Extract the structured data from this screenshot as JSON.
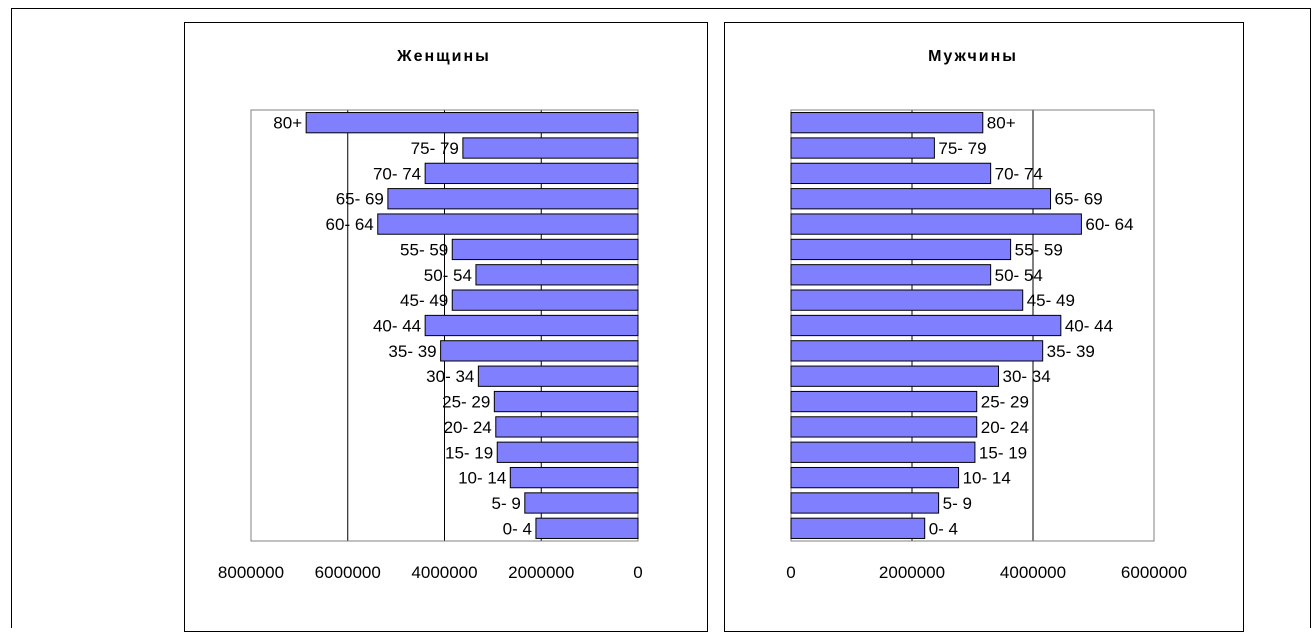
{
  "chart_data": [
    {
      "type": "bar",
      "orientation": "horizontal",
      "x_direction": "reversed",
      "title": "Женщины",
      "categories": [
        "80+",
        "75- 79",
        "70- 74",
        "65- 69",
        "60- 64",
        "55- 59",
        "50- 54",
        "45- 49",
        "40- 44",
        "35- 39",
        "30- 34",
        "25- 29",
        "20- 24",
        "15- 19",
        "10- 14",
        "5-  9",
        "0-  4"
      ],
      "values": [
        6860000,
        3620000,
        4400000,
        5170000,
        5380000,
        3840000,
        3350000,
        3840000,
        4400000,
        4080000,
        3300000,
        2970000,
        2940000,
        2910000,
        2640000,
        2340000,
        2110000
      ],
      "xlim": [
        0,
        8000000
      ],
      "ticks": [
        0,
        2000000,
        4000000,
        6000000,
        8000000
      ],
      "tick_labels": [
        "0",
        "2000000",
        "4000000",
        "6000000",
        "8000000"
      ],
      "bar_color": "#8080ff",
      "grid": true,
      "legend": "none"
    },
    {
      "type": "bar",
      "orientation": "horizontal",
      "x_direction": "normal",
      "title": "Мужчины",
      "categories": [
        "80+",
        "75- 79",
        "70- 74",
        "65- 69",
        "60- 64",
        "55- 59",
        "50- 54",
        "45- 49",
        "40- 44",
        "35- 39",
        "30- 34",
        "25- 29",
        "20- 24",
        "15- 19",
        "10- 14",
        "5-  9",
        "0-  4"
      ],
      "values": [
        3170000,
        2370000,
        3300000,
        4290000,
        4800000,
        3630000,
        3300000,
        3830000,
        4460000,
        4160000,
        3430000,
        3070000,
        3070000,
        3040000,
        2770000,
        2440000,
        2210000
      ],
      "xlim": [
        0,
        6000000
      ],
      "ticks": [
        0,
        2000000,
        4000000,
        6000000
      ],
      "tick_labels": [
        "0",
        "2000000",
        "4000000",
        "6000000"
      ],
      "bar_color": "#8080ff",
      "grid": true,
      "legend": "none"
    }
  ]
}
